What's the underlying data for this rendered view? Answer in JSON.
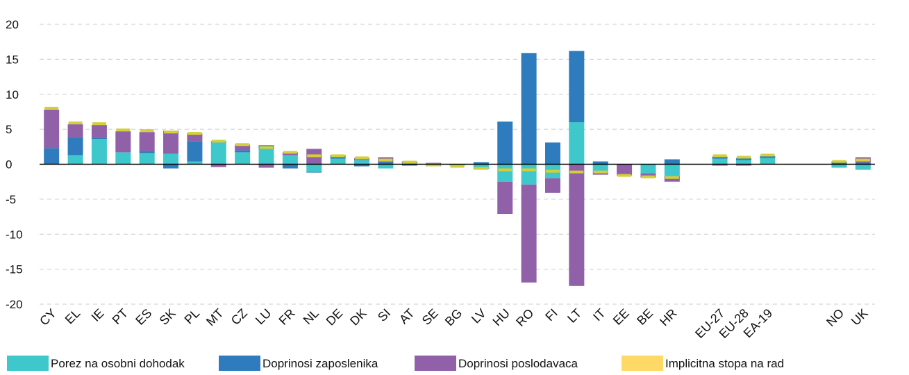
{
  "chart_data": {
    "type": "bar",
    "stacked": true,
    "categories": [
      "CY",
      "EL",
      "IE",
      "PT",
      "ES",
      "SK",
      "PL",
      "MT",
      "CZ",
      "LU",
      "FR",
      "NL",
      "DE",
      "DK",
      "SI",
      "AT",
      "SE",
      "BG",
      "LV",
      "HU",
      "RO",
      "FI",
      "LT",
      "IT",
      "EE",
      "BE",
      "HR",
      null,
      "EU-27",
      "EU-28",
      "EA-19",
      null,
      null,
      "NO",
      "UK"
    ],
    "series": [
      {
        "name": "Porez na osobni dohodak",
        "color": "#3ec8cc",
        "values": [
          0,
          1.3,
          3.6,
          1.7,
          1.6,
          1.5,
          0.4,
          3.1,
          1.7,
          2.2,
          1.3,
          -1.1,
          0.8,
          0.6,
          -0.6,
          0.2,
          -0.3,
          -0.2,
          -0.7,
          -2.5,
          -2.9,
          -2,
          6,
          -1.2,
          0,
          -1.3,
          -1.7,
          null,
          0.8,
          0.6,
          0.9,
          null,
          null,
          -0.5,
          -0.8
        ]
      },
      {
        "name": "Doprinosi zaposlenika",
        "color": "#2e7bbd",
        "values": [
          2.3,
          2.6,
          0.2,
          0,
          0.3,
          -0.6,
          2.9,
          0.2,
          0.3,
          0.5,
          -0.6,
          -0.1,
          0.4,
          -0.3,
          0.3,
          -0.2,
          0,
          0,
          0.3,
          6.1,
          15.9,
          3.1,
          10.2,
          0.4,
          0,
          0,
          0.7,
          null,
          0.3,
          0.3,
          0.3,
          null,
          null,
          0.3,
          0.2
        ]
      },
      {
        "name": "Doprinosi poslodavaca",
        "color": "#9060a8",
        "values": [
          5.5,
          1.8,
          1.8,
          3,
          2.7,
          3.3,
          1.1,
          -0.4,
          0.8,
          -0.5,
          0.4,
          2.2,
          0.1,
          0.3,
          0.7,
          0.2,
          0.2,
          0,
          0,
          -4.6,
          -14,
          -2.1,
          -17.4,
          -0.3,
          -1.6,
          -0.6,
          -0.8,
          null,
          -0.2,
          -0.2,
          0,
          null,
          null,
          0.1,
          0.8
        ]
      },
      {
        "name": "Implicitna stopa na rad",
        "color": "#d2cf3a",
        "marker": true,
        "values": [
          8,
          5.9,
          5.8,
          4.9,
          4.8,
          4.6,
          4.4,
          3.3,
          2.8,
          2.4,
          1.7,
          1.2,
          1.2,
          0.9,
          0.6,
          0.3,
          -0.1,
          -0.3,
          -0.6,
          -0.8,
          -0.8,
          -1,
          -1.1,
          -1.1,
          -1.6,
          -1.8,
          -1.9,
          null,
          1.2,
          1,
          1.3,
          null,
          null,
          0.4,
          0.6
        ]
      }
    ],
    "ylim": [
      -20,
      20
    ],
    "yticks": [
      -20,
      -15,
      -10,
      -5,
      0,
      5,
      10,
      15,
      20
    ],
    "grid": true
  }
}
